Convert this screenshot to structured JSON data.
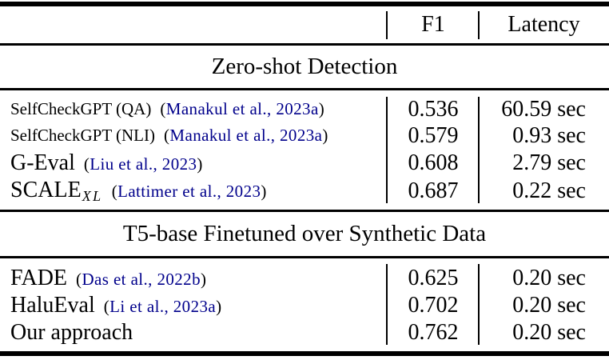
{
  "header": {
    "f1": "F1",
    "latency": "Latency"
  },
  "punct": {
    "open": "(",
    "close": ")"
  },
  "sections": [
    {
      "title": "Zero-shot Detection",
      "rows": [
        {
          "method": "SelfCheckGPT (QA)",
          "cite": "Manakul et al., 2023a",
          "f1": "0.536",
          "latency": "60.59 sec"
        },
        {
          "method": "SelfCheckGPT (NLI)",
          "cite": "Manakul et al., 2023a",
          "f1": "0.579",
          "latency": "0.93 sec"
        },
        {
          "method": "G-Eval",
          "cite": "Liu et al., 2023",
          "f1": "0.608",
          "latency": "2.79 sec"
        },
        {
          "method": "SCALE",
          "method_sub": "XL",
          "cite": "Lattimer et al., 2023",
          "f1": "0.687",
          "latency": "0.22 sec"
        }
      ]
    },
    {
      "title": "T5-base Finetuned over Synthetic Data",
      "rows": [
        {
          "method": "FADE",
          "cite": "Das et al., 2022b",
          "f1": "0.625",
          "latency": "0.20 sec"
        },
        {
          "method": "HaluEval",
          "cite": "Li et al., 2023a",
          "f1": "0.702",
          "latency": "0.20 sec"
        },
        {
          "method": "Our approach",
          "cite": "",
          "f1": "0.762",
          "latency": "0.20 sec"
        }
      ]
    }
  ],
  "colors": {
    "citation": "#00008B",
    "text": "#000000",
    "rule": "#000000"
  }
}
